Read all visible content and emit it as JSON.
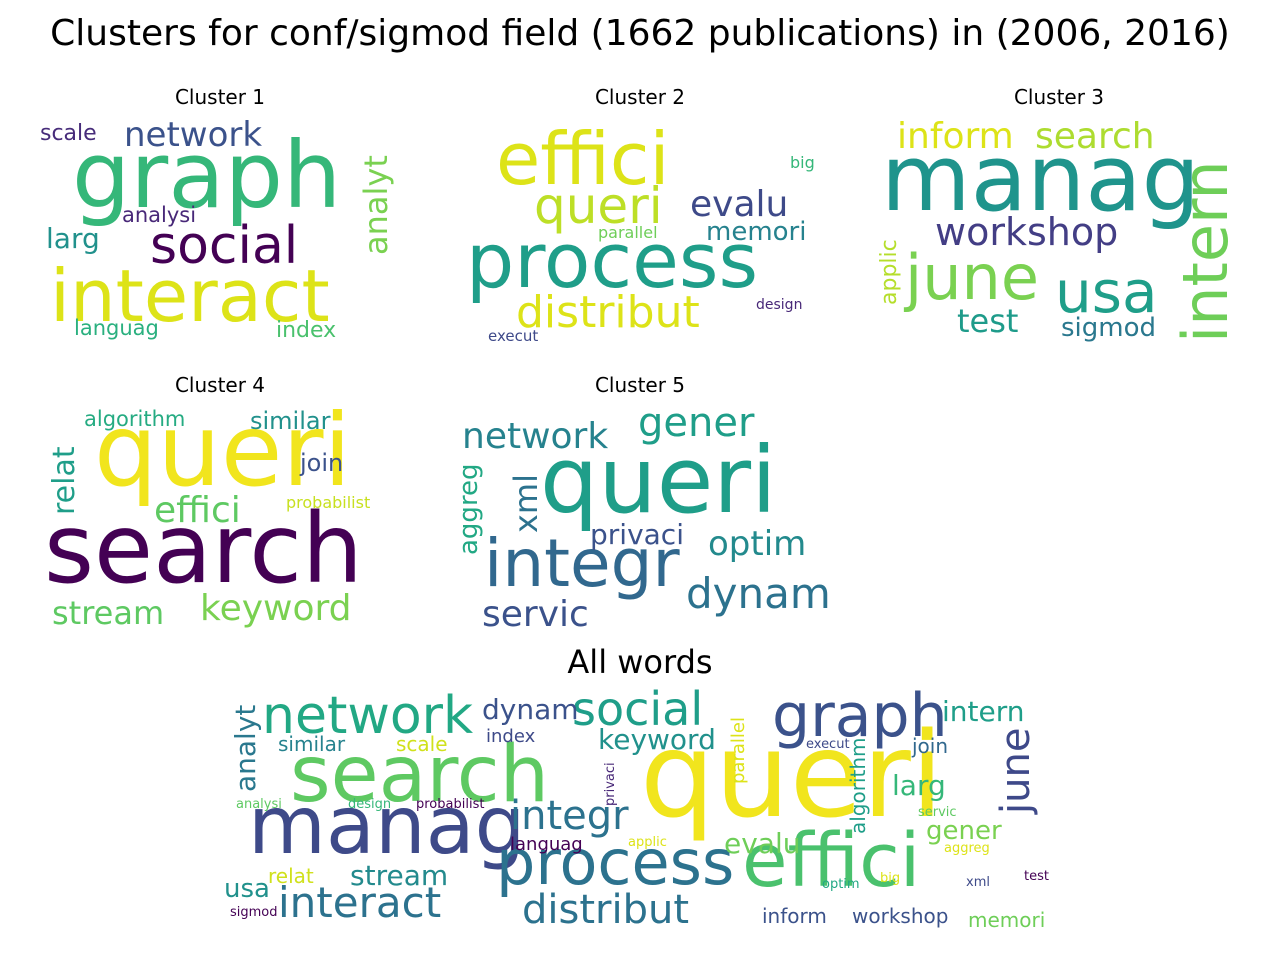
{
  "title": "Clusters for conf/sigmod field (1662 publications) in (2006, 2016)",
  "panels": [
    {
      "title": "Cluster 1",
      "words": [
        {
          "text": "graph",
          "color": "#35b779",
          "weight": 1.0
        },
        {
          "text": "interact",
          "color": "#dde318",
          "weight": 0.9
        },
        {
          "text": "social",
          "color": "#440154",
          "weight": 0.7
        },
        {
          "text": "network",
          "color": "#3b528b",
          "weight": 0.5
        },
        {
          "text": "analyt",
          "color": "#7ad151",
          "weight": 0.45
        },
        {
          "text": "larg",
          "color": "#21918c",
          "weight": 0.35
        },
        {
          "text": "scale",
          "color": "#472c7a",
          "weight": 0.3
        },
        {
          "text": "analysi",
          "color": "#482878",
          "weight": 0.28
        },
        {
          "text": "languag",
          "color": "#2ab07f",
          "weight": 0.28
        },
        {
          "text": "index",
          "color": "#4ac16d",
          "weight": 0.28
        }
      ]
    },
    {
      "title": "Cluster 2",
      "words": [
        {
          "text": "effici",
          "color": "#dde318",
          "weight": 1.0
        },
        {
          "text": "process",
          "color": "#1f9e89",
          "weight": 1.0
        },
        {
          "text": "queri",
          "color": "#bddf26",
          "weight": 0.75
        },
        {
          "text": "distribut",
          "color": "#dde318",
          "weight": 0.6
        },
        {
          "text": "evalu",
          "color": "#3e4a89",
          "weight": 0.5
        },
        {
          "text": "memori",
          "color": "#26828e",
          "weight": 0.4
        },
        {
          "text": "big",
          "color": "#35b779",
          "weight": 0.2
        },
        {
          "text": "parallel",
          "color": "#6ece58",
          "weight": 0.2
        },
        {
          "text": "design",
          "color": "#482878",
          "weight": 0.2
        },
        {
          "text": "execut",
          "color": "#3e4989",
          "weight": 0.2
        }
      ]
    },
    {
      "title": "Cluster 3",
      "words": [
        {
          "text": "manag",
          "color": "#1f948c",
          "weight": 1.0
        },
        {
          "text": "intern",
          "color": "#6ece58",
          "weight": 0.9
        },
        {
          "text": "inform",
          "color": "#dde318",
          "weight": 0.6
        },
        {
          "text": "search",
          "color": "#addc30",
          "weight": 0.55
        },
        {
          "text": "workshop",
          "color": "#433e85",
          "weight": 0.5
        },
        {
          "text": "june",
          "color": "#7ad151",
          "weight": 0.7
        },
        {
          "text": "usa",
          "color": "#1f9e89",
          "weight": 0.7
        },
        {
          "text": "test",
          "color": "#1e9b8a",
          "weight": 0.4
        },
        {
          "text": "sigmod",
          "color": "#2a788e",
          "weight": 0.35
        },
        {
          "text": "applic",
          "color": "#b5de2b",
          "weight": 0.28
        }
      ]
    },
    {
      "title": "Cluster 4",
      "words": [
        {
          "text": "queri",
          "color": "#f1e51d",
          "weight": 1.0
        },
        {
          "text": "search",
          "color": "#440154",
          "weight": 1.0
        },
        {
          "text": "effici",
          "color": "#5ec962",
          "weight": 0.5
        },
        {
          "text": "keyword",
          "color": "#7ad151",
          "weight": 0.5
        },
        {
          "text": "stream",
          "color": "#5ec962",
          "weight": 0.45
        },
        {
          "text": "relat",
          "color": "#1f9e89",
          "weight": 0.4
        },
        {
          "text": "algorithm",
          "color": "#25ab82",
          "weight": 0.3
        },
        {
          "text": "similar",
          "color": "#21918c",
          "weight": 0.32
        },
        {
          "text": "join",
          "color": "#3b528b",
          "weight": 0.3
        },
        {
          "text": "probabilist",
          "color": "#c8e020",
          "weight": 0.22
        }
      ]
    },
    {
      "title": "Cluster 5",
      "words": [
        {
          "text": "queri",
          "color": "#1f9e89",
          "weight": 1.0
        },
        {
          "text": "integr",
          "color": "#31688e",
          "weight": 0.85
        },
        {
          "text": "network",
          "color": "#26828e",
          "weight": 0.55
        },
        {
          "text": "gener",
          "color": "#1f9e89",
          "weight": 0.55
        },
        {
          "text": "xml",
          "color": "#2c728e",
          "weight": 0.5
        },
        {
          "text": "aggreg",
          "color": "#22a884",
          "weight": 0.35
        },
        {
          "text": "privaci",
          "color": "#3b528b",
          "weight": 0.4
        },
        {
          "text": "optim",
          "color": "#238a8d",
          "weight": 0.5
        },
        {
          "text": "dynam",
          "color": "#2c728e",
          "weight": 0.6
        },
        {
          "text": "servic",
          "color": "#3b528b",
          "weight": 0.5
        }
      ]
    }
  ],
  "all": {
    "title": "All words",
    "words": [
      {
        "text": "queri",
        "color": "#f1e51d",
        "weight": 1.0
      },
      {
        "text": "search",
        "color": "#5ec962",
        "weight": 0.8
      },
      {
        "text": "manag",
        "color": "#3e4a89",
        "weight": 0.8
      },
      {
        "text": "effici",
        "color": "#4ac16d",
        "weight": 0.75
      },
      {
        "text": "process",
        "color": "#2c728e",
        "weight": 0.65
      },
      {
        "text": "graph",
        "color": "#3b528b",
        "weight": 0.55
      },
      {
        "text": "network",
        "color": "#22a884",
        "weight": 0.5
      },
      {
        "text": "social",
        "color": "#1f9e89",
        "weight": 0.45
      },
      {
        "text": "integr",
        "color": "#2c728e",
        "weight": 0.45
      },
      {
        "text": "interact",
        "color": "#2c728e",
        "weight": 0.45
      },
      {
        "text": "distribut",
        "color": "#2c728e",
        "weight": 0.4
      },
      {
        "text": "june",
        "color": "#3e4989",
        "weight": 0.4
      },
      {
        "text": "dynam",
        "color": "#3b528b",
        "weight": 0.3
      },
      {
        "text": "keyword",
        "color": "#21918c",
        "weight": 0.3
      },
      {
        "text": "intern",
        "color": "#1f9e89",
        "weight": 0.3
      },
      {
        "text": "larg",
        "color": "#35b779",
        "weight": 0.3
      },
      {
        "text": "analyt",
        "color": "#2a788e",
        "weight": 0.3
      },
      {
        "text": "stream",
        "color": "#238a8d",
        "weight": 0.3
      },
      {
        "text": "evalu",
        "color": "#6ece58",
        "weight": 0.3
      },
      {
        "text": "gener",
        "color": "#7ad151",
        "weight": 0.28
      },
      {
        "text": "usa",
        "color": "#21918c",
        "weight": 0.28
      },
      {
        "text": "algorithm",
        "color": "#1f9e89",
        "weight": 0.22
      },
      {
        "text": "parallel",
        "color": "#dde318",
        "weight": 0.22
      },
      {
        "text": "similar",
        "color": "#26828e",
        "weight": 0.2
      },
      {
        "text": "scale",
        "color": "#d0e11c",
        "weight": 0.2
      },
      {
        "text": "index",
        "color": "#3e4a89",
        "weight": 0.18
      },
      {
        "text": "join",
        "color": "#31688e",
        "weight": 0.2
      },
      {
        "text": "languag",
        "color": "#440154",
        "weight": 0.18
      },
      {
        "text": "relat",
        "color": "#d0e11c",
        "weight": 0.2
      },
      {
        "text": "inform",
        "color": "#3b528b",
        "weight": 0.2
      },
      {
        "text": "workshop",
        "color": "#3b528b",
        "weight": 0.2
      },
      {
        "text": "memori",
        "color": "#6ece58",
        "weight": 0.2
      },
      {
        "text": "analysi",
        "color": "#5ec962",
        "weight": 0.12
      },
      {
        "text": "design",
        "color": "#35b779",
        "weight": 0.12
      },
      {
        "text": "probabilist",
        "color": "#440154",
        "weight": 0.12
      },
      {
        "text": "privaci",
        "color": "#482878",
        "weight": 0.12
      },
      {
        "text": "applic",
        "color": "#dde318",
        "weight": 0.12
      },
      {
        "text": "execut",
        "color": "#3e4a89",
        "weight": 0.12
      },
      {
        "text": "servic",
        "color": "#5ec962",
        "weight": 0.12
      },
      {
        "text": "aggreg",
        "color": "#dde318",
        "weight": 0.12
      },
      {
        "text": "optim",
        "color": "#22a884",
        "weight": 0.12
      },
      {
        "text": "big",
        "color": "#dde318",
        "weight": 0.12
      },
      {
        "text": "xml",
        "color": "#3e4a89",
        "weight": 0.12
      },
      {
        "text": "test",
        "color": "#440154",
        "weight": 0.12
      },
      {
        "text": "sigmod",
        "color": "#440154",
        "weight": 0.12
      }
    ]
  }
}
